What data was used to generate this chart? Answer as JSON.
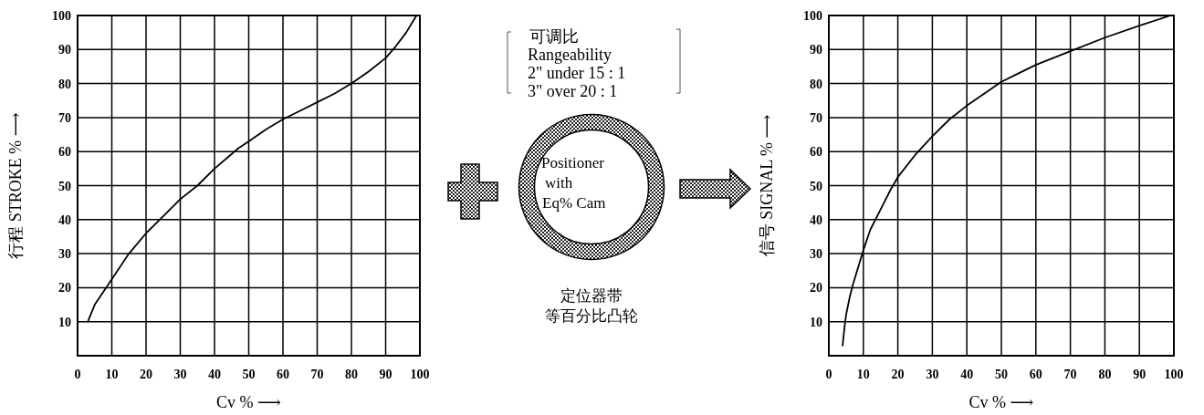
{
  "chart_data": [
    {
      "type": "line",
      "xlabel": "Cv %  ⟶",
      "ylabel": "行程  STROKE %  ⟶",
      "xlim": [
        0,
        100
      ],
      "ylim": [
        0,
        100
      ],
      "xticks": [
        0,
        10,
        20,
        30,
        40,
        50,
        60,
        70,
        80,
        90,
        100
      ],
      "yticks": [
        {
          "value": 0,
          "label": null
        },
        10,
        20,
        30,
        40,
        50,
        60,
        70,
        80,
        90,
        100
      ],
      "grid": true,
      "series": [
        {
          "color": "#000000",
          "x": [
            3,
            5,
            9,
            15,
            20,
            25,
            30,
            35,
            40,
            47,
            50,
            55,
            60,
            65,
            70,
            75,
            80,
            85,
            90,
            93,
            96,
            99
          ],
          "values": [
            10,
            15,
            21,
            30,
            36,
            41,
            46,
            50,
            55,
            61,
            63,
            66.5,
            69.5,
            72,
            74.5,
            77,
            80,
            83.5,
            87.5,
            91,
            95,
            100
          ]
        }
      ]
    },
    {
      "type": "other",
      "annotations": [
        "可调比",
        "Rangeability",
        "2\" under 15 : 1",
        "3\" over 20 : 1",
        "Positioner",
        "with",
        "Eq% Cam",
        "定位器带",
        "等百分比凸轮"
      ]
    },
    {
      "type": "line",
      "xlabel": "Cv %  ⟶",
      "ylabel": "信号  SIGNAL %  ⟶",
      "xlim": [
        0,
        100
      ],
      "ylim": [
        0,
        100
      ],
      "xticks": [
        0,
        10,
        20,
        30,
        40,
        50,
        60,
        70,
        80,
        90,
        100
      ],
      "yticks": [
        {
          "value": 0,
          "label": null
        },
        10,
        20,
        30,
        40,
        50,
        60,
        70,
        80,
        90,
        100
      ],
      "grid": true,
      "series": [
        {
          "color": "#000000",
          "x": [
            4,
            4.5,
            5,
            6,
            7,
            8.5,
            10,
            12,
            15,
            18,
            20,
            25,
            30,
            35,
            40,
            45,
            50,
            55,
            60,
            70,
            80,
            90,
            99
          ],
          "values": [
            3,
            8,
            12,
            17,
            21,
            26,
            31,
            37,
            43,
            49,
            52.5,
            59,
            64.5,
            69.5,
            73.5,
            77,
            80.5,
            83,
            85.5,
            89.5,
            93.5,
            97,
            100
          ]
        }
      ]
    }
  ]
}
